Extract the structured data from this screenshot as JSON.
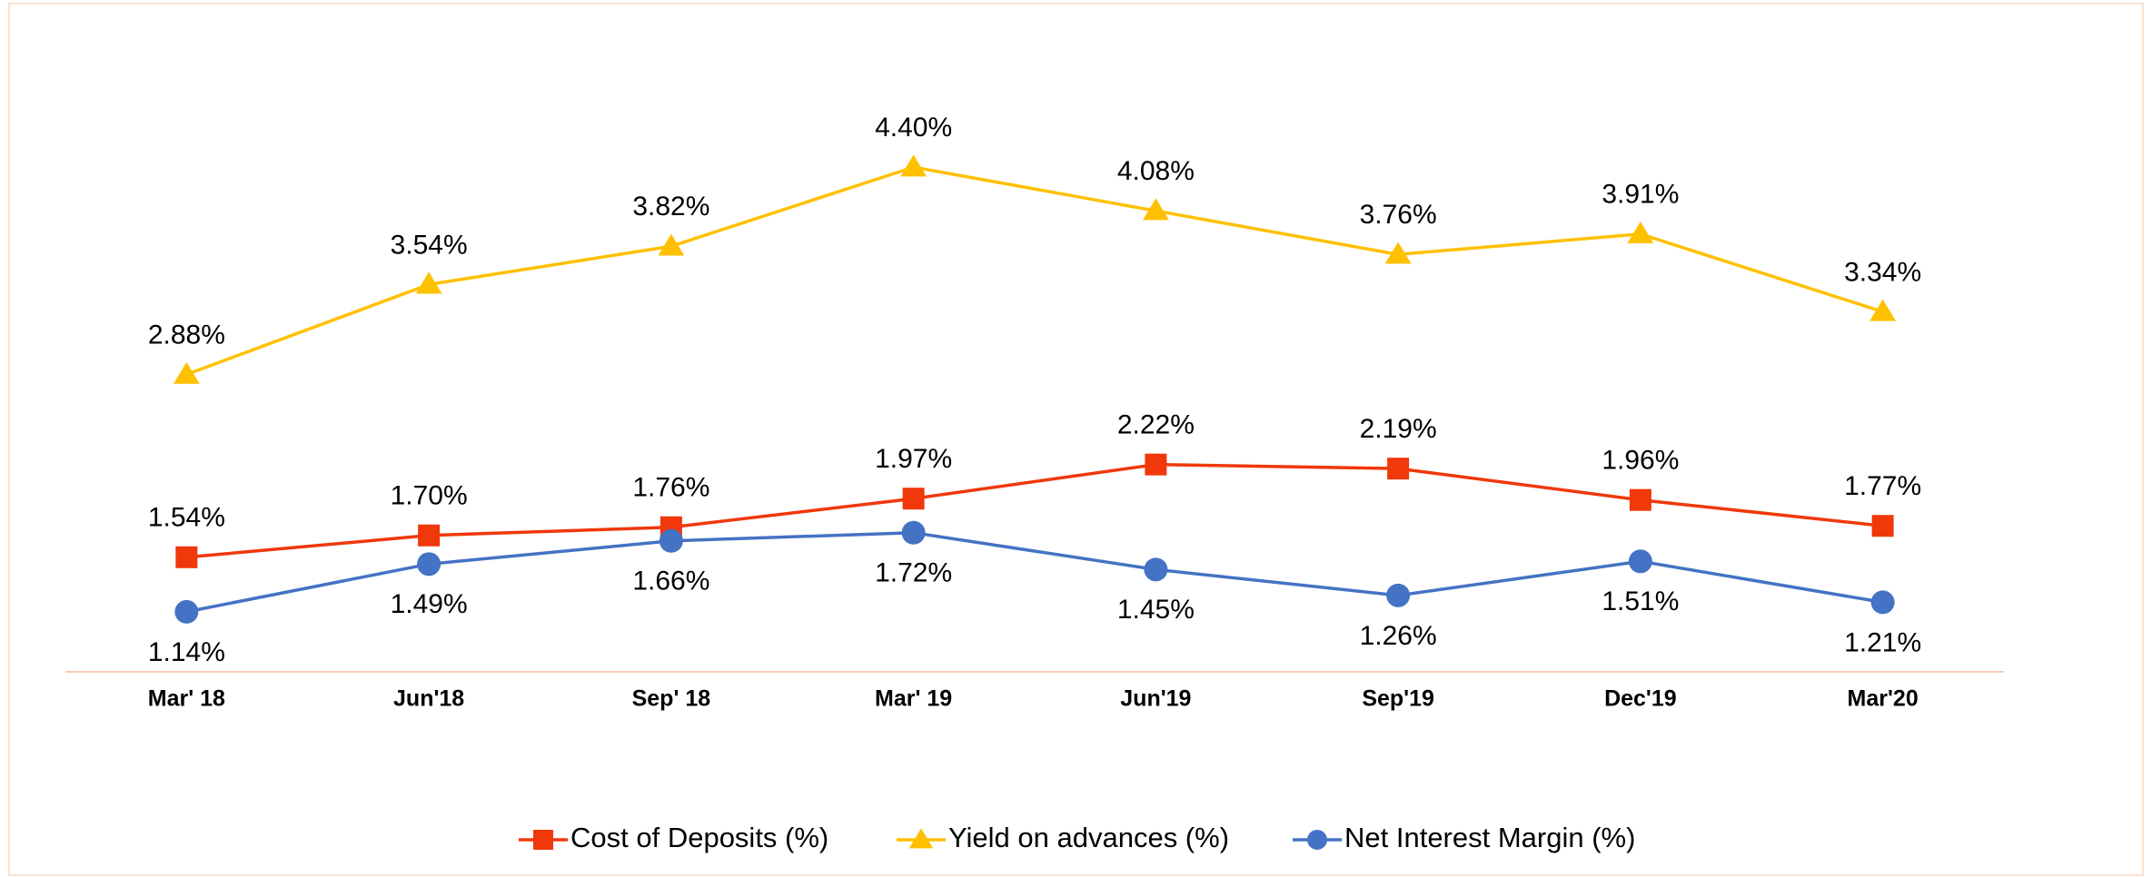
{
  "chart_data": {
    "type": "line",
    "categories": [
      "Mar' 18",
      "Jun'18",
      "Sep' 18",
      "Mar' 19",
      "Jun'19",
      "Sep'19",
      "Dec'19",
      "Mar'20"
    ],
    "series": [
      {
        "name": "Cost of Deposits (%)",
        "color": "#f0380a",
        "marker": "square",
        "values": [
          1.54,
          1.7,
          1.76,
          1.97,
          2.22,
          2.19,
          1.96,
          1.77
        ],
        "value_labels": [
          "1.54%",
          "1.70%",
          "1.76%",
          "1.97%",
          "2.22%",
          "2.19%",
          "1.96%",
          "1.77%"
        ]
      },
      {
        "name": "Yield on advances (%)",
        "color": "#ffc000",
        "marker": "triangle",
        "values": [
          2.88,
          3.54,
          3.82,
          4.4,
          4.08,
          3.76,
          3.91,
          3.34
        ],
        "value_labels": [
          "2.88%",
          "3.54%",
          "3.82%",
          "4.40%",
          "4.08%",
          "3.76%",
          "3.91%",
          "3.34%"
        ]
      },
      {
        "name": "Net Interest Margin (%)",
        "color": "#4472c4",
        "marker": "circle",
        "values": [
          1.14,
          1.49,
          1.66,
          1.72,
          1.45,
          1.26,
          1.51,
          1.21
        ],
        "value_labels": [
          "1.14%",
          "1.49%",
          "1.66%",
          "1.72%",
          "1.45%",
          "1.26%",
          "1.51%",
          "1.21%"
        ]
      }
    ],
    "ylim": [
      0.7,
      5.0
    ],
    "legend": "bottom"
  }
}
